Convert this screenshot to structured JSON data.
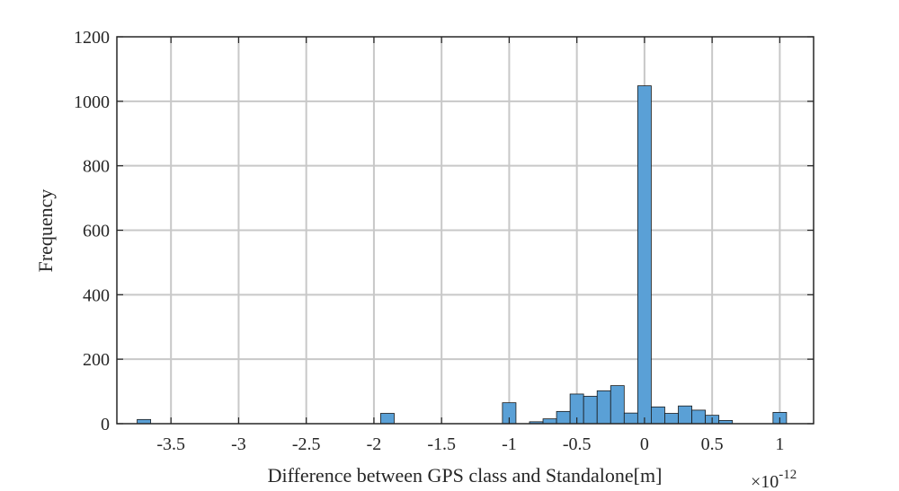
{
  "chart_data": {
    "type": "bar",
    "xlabel": "Difference between GPS class and Standalone[m]",
    "ylabel": "Frequency",
    "x_multiplier": "×10",
    "x_exponent": "-12",
    "xlim": [
      -3.9,
      1.25
    ],
    "ylim": [
      0,
      1200
    ],
    "grid": true,
    "bar_color": "#5aa0d6",
    "bar_edge_color": "#1a1a1a",
    "grid_color": "#c8c8c8",
    "x_ticks": [
      {
        "value": -3.5,
        "label": "-3.5"
      },
      {
        "value": -3,
        "label": "-3"
      },
      {
        "value": -2.5,
        "label": "-2.5"
      },
      {
        "value": -2,
        "label": "-2"
      },
      {
        "value": -1.5,
        "label": "-1.5"
      },
      {
        "value": -1,
        "label": "-1"
      },
      {
        "value": -0.5,
        "label": "-0.5"
      },
      {
        "value": 0,
        "label": "0"
      },
      {
        "value": 0.5,
        "label": "0.5"
      },
      {
        "value": 1,
        "label": "1"
      }
    ],
    "y_ticks": [
      {
        "value": 0,
        "label": "0"
      },
      {
        "value": 200,
        "label": "200"
      },
      {
        "value": 400,
        "label": "400"
      },
      {
        "value": 600,
        "label": "600"
      },
      {
        "value": 800,
        "label": "800"
      },
      {
        "value": 1000,
        "label": "1000"
      },
      {
        "value": 1200,
        "label": "1200"
      }
    ],
    "bin_width": 0.1,
    "bins": [
      {
        "start": -3.75,
        "value": 13
      },
      {
        "start": -1.95,
        "value": 32
      },
      {
        "start": -1.05,
        "value": 65
      },
      {
        "start": -0.85,
        "value": 6
      },
      {
        "start": -0.75,
        "value": 15
      },
      {
        "start": -0.65,
        "value": 38
      },
      {
        "start": -0.55,
        "value": 92
      },
      {
        "start": -0.45,
        "value": 85
      },
      {
        "start": -0.35,
        "value": 102
      },
      {
        "start": -0.25,
        "value": 118
      },
      {
        "start": -0.15,
        "value": 33
      },
      {
        "start": -0.05,
        "value": 1048
      },
      {
        "start": 0.05,
        "value": 52
      },
      {
        "start": 0.15,
        "value": 32
      },
      {
        "start": 0.25,
        "value": 55
      },
      {
        "start": 0.35,
        "value": 42
      },
      {
        "start": 0.45,
        "value": 26
      },
      {
        "start": 0.55,
        "value": 10
      },
      {
        "start": 0.95,
        "value": 35
      }
    ]
  }
}
